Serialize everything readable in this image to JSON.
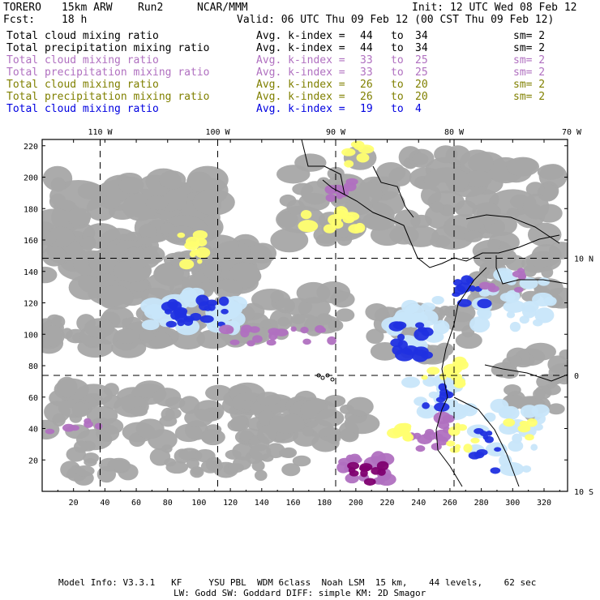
{
  "header": {
    "model": "TORERO",
    "resolution": "15km ARW",
    "run": "Run2",
    "org": "NCAR/MMM",
    "init": "Init: 12 UTC Wed 08 Feb 12",
    "fcst_label": "Fcst:",
    "fcst_value": "18 h",
    "valid": "Valid: 06 UTC Thu 09 Feb 12 (00 CST Thu 09 Feb 12)"
  },
  "fields": [
    {
      "name": "Total cloud mixing ratio",
      "index_label": "Avg. k-index =",
      "from": "44",
      "to_label": "to",
      "to": "34",
      "sm": "sm= 2",
      "color": "#000000"
    },
    {
      "name": "Total precipitation mixing ratio",
      "index_label": "Avg. k-index =",
      "from": "44",
      "to_label": "to",
      "to": "34",
      "sm": "sm= 2",
      "color": "#000000"
    },
    {
      "name": "Total cloud mixing ratio",
      "index_label": "Avg. k-index =",
      "from": "33",
      "to_label": "to",
      "to": "25",
      "sm": "sm= 2",
      "color": "#b070c0"
    },
    {
      "name": "Total precipitation mixing ratio",
      "index_label": "Avg. k-index =",
      "from": "33",
      "to_label": "to",
      "to": "25",
      "sm": "sm= 2",
      "color": "#b070c0"
    },
    {
      "name": "Total cloud mixing ratio",
      "index_label": "Avg. k-index =",
      "from": "26",
      "to_label": "to",
      "to": "20",
      "sm": "sm= 2",
      "color": "#808000"
    },
    {
      "name": "Total precipitation mixing ratio",
      "index_label": "Avg. k-index =",
      "from": "26",
      "to_label": "to",
      "to": "20",
      "sm": "sm= 2",
      "color": "#808000"
    },
    {
      "name": "Total cloud mixing ratio",
      "index_label": "Avg. k-index =",
      "from": "19",
      "to_label": "to",
      "to": "4",
      "sm": "",
      "color": "#0000e0"
    }
  ],
  "map": {
    "lon_labels": [
      "110 W",
      "100 W",
      "90 W",
      "80 W",
      "70 W"
    ],
    "lat_labels": [
      "10 N",
      "0",
      "10 S"
    ],
    "x_ticks": [
      "20",
      "40",
      "60",
      "80",
      "100",
      "120",
      "140",
      "160",
      "180",
      "200",
      "220",
      "240",
      "260",
      "280",
      "300",
      "320"
    ],
    "y_ticks": [
      "220",
      "200",
      "180",
      "160",
      "140",
      "120",
      "100",
      "80",
      "60",
      "40",
      "20"
    ],
    "colors": {
      "gray": "#a6a6a6",
      "light_blue": "#c8e6fa",
      "blue": "#2030e0",
      "magenta": "#b070c0",
      "dark_purple": "#800070",
      "yellow": "#ffff70"
    }
  },
  "footer": {
    "line1": "Model Info: V3.3.1   KF     YSU PBL  WDM 6class  Noah LSM  15 km,    44 levels,    62 sec",
    "line2": "LW: Godd SW: Goddard DIFF: simple KM: 2D Smagor"
  }
}
